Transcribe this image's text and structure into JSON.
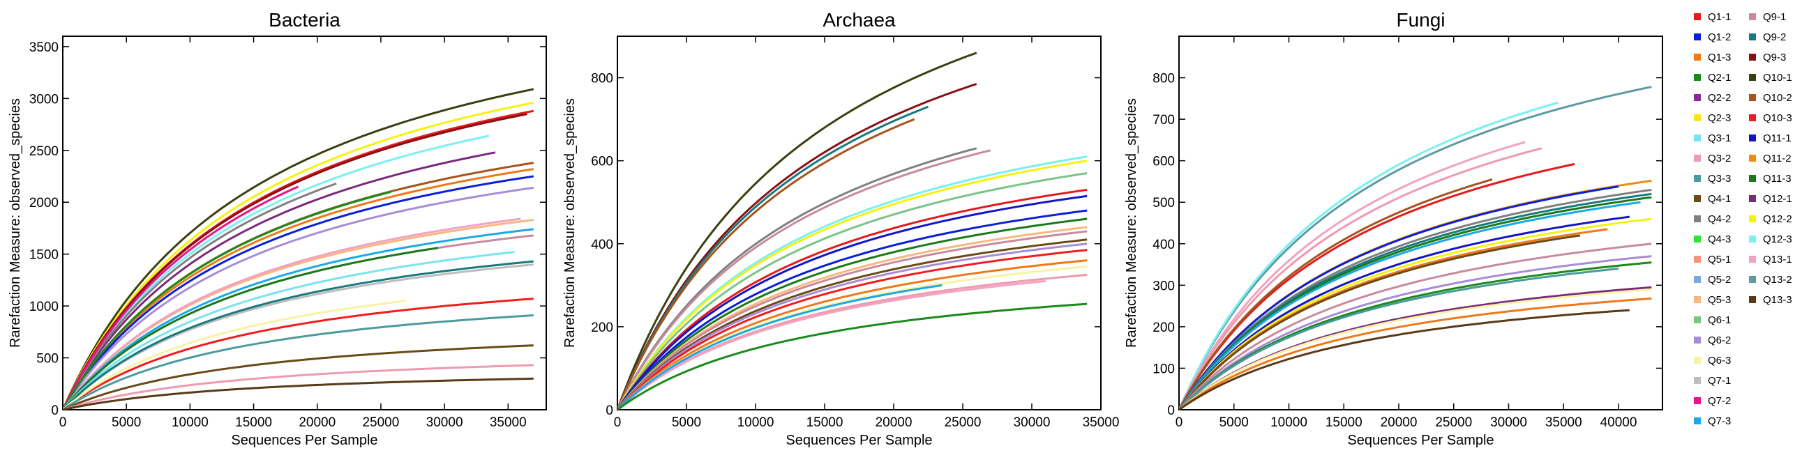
{
  "sample_names": [
    "Q1-1",
    "Q1-2",
    "Q1-3",
    "Q2-1",
    "Q2-2",
    "Q2-3",
    "Q3-1",
    "Q3-2",
    "Q3-3",
    "Q4-1",
    "Q4-2",
    "Q4-3",
    "Q5-1",
    "Q5-2",
    "Q5-3",
    "Q6-1",
    "Q6-2",
    "Q6-3",
    "Q7-1",
    "Q7-2",
    "Q7-3",
    "Q9-1",
    "Q9-2",
    "Q9-3",
    "Q10-1",
    "Q10-2",
    "Q10-3",
    "Q11-1",
    "Q11-2",
    "Q11-3",
    "Q12-1",
    "Q12-2",
    "Q12-3",
    "Q13-1",
    "Q13-2",
    "Q13-3"
  ],
  "colors": {
    "Q1-1": "#e41a1c",
    "Q1-2": "#0a1fd6",
    "Q1-3": "#f07818",
    "Q2-1": "#1a8a1a",
    "Q2-2": "#8a2a9a",
    "Q2-3": "#f5e61a",
    "Q3-1": "#7ae4ee",
    "Q3-2": "#ee9ab0",
    "Q3-3": "#4a9a9e",
    "Q4-1": "#6a4a16",
    "Q4-2": "#808080",
    "Q4-3": "#36e036",
    "Q5-1": "#f4937a",
    "Q5-2": "#7aaadc",
    "Q5-3": "#f7b880",
    "Q6-1": "#7ac488",
    "Q6-2": "#a78cd6",
    "Q6-3": "#f7f3a4",
    "Q7-1": "#bdbdbd",
    "Q7-2": "#e8148a",
    "Q7-3": "#1aa8e8",
    "Q9-1": "#c98a9a",
    "Q9-2": "#177a7e",
    "Q9-3": "#8a0f12",
    "Q10-1": "#3c4010",
    "Q10-2": "#a8521c",
    "Q10-3": "#f21c1c",
    "Q11-1": "#1414c8",
    "Q11-2": "#f08a12",
    "Q11-3": "#1a7a1a",
    "Q12-1": "#7a2a7e",
    "Q12-2": "#f6f20e",
    "Q12-3": "#7af0f2",
    "Q13-1": "#f2a2c2",
    "Q13-2": "#5e9aa2",
    "Q13-3": "#5a3a16"
  },
  "chart_data": [
    {
      "type": "line",
      "title": "Bacteria",
      "xlabel": "Sequences Per Sample",
      "ylabel": "Rarefaction Measure: observed_species",
      "xlim": [
        0,
        38000
      ],
      "ylim": [
        0,
        3600
      ],
      "xticks": [
        0,
        5000,
        10000,
        15000,
        20000,
        25000,
        30000,
        35000
      ],
      "yticks": [
        0,
        500,
        1000,
        1500,
        2000,
        2500,
        3000,
        3500
      ],
      "grid": false,
      "series": [
        {
          "name": "Q10-1",
          "xmax": 37000,
          "y": 3090
        },
        {
          "name": "Q12-2",
          "xmax": 37000,
          "y": 2960
        },
        {
          "name": "Q1-1",
          "xmax": 37000,
          "y": 2880
        },
        {
          "name": "Q9-3",
          "xmax": 36500,
          "y": 2850
        },
        {
          "name": "Q12-3",
          "xmax": 33500,
          "y": 2640
        },
        {
          "name": "Q12-1",
          "xmax": 34000,
          "y": 2480
        },
        {
          "name": "Q10-2",
          "xmax": 37000,
          "y": 2380
        },
        {
          "name": "Q1-3",
          "xmax": 37000,
          "y": 2320
        },
        {
          "name": "Q1-2",
          "xmax": 37000,
          "y": 2250
        },
        {
          "name": "Q6-2",
          "xmax": 37000,
          "y": 2140
        },
        {
          "name": "Q4-2",
          "xmax": 21500,
          "y": 2180
        },
        {
          "name": "Q7-2",
          "xmax": 18500,
          "y": 2150
        },
        {
          "name": "Q2-1",
          "xmax": 25800,
          "y": 2100
        },
        {
          "name": "Q5-3",
          "xmax": 37000,
          "y": 1830
        },
        {
          "name": "Q13-1",
          "xmax": 36000,
          "y": 1840
        },
        {
          "name": "Q7-3",
          "xmax": 37000,
          "y": 1740
        },
        {
          "name": "Q9-1",
          "xmax": 37000,
          "y": 1680
        },
        {
          "name": "Q11-3",
          "xmax": 29500,
          "y": 1560
        },
        {
          "name": "Q3-1",
          "xmax": 35500,
          "y": 1520
        },
        {
          "name": "Q7-1",
          "xmax": 37000,
          "y": 1400
        },
        {
          "name": "Q9-2",
          "xmax": 37000,
          "y": 1430
        },
        {
          "name": "Q10-3",
          "xmax": 37000,
          "y": 1070
        },
        {
          "name": "Q6-3",
          "xmax": 27000,
          "y": 1050
        },
        {
          "name": "Q3-3",
          "xmax": 37000,
          "y": 910
        },
        {
          "name": "Q4-1",
          "xmax": 37000,
          "y": 620
        },
        {
          "name": "Q3-2",
          "xmax": 37000,
          "y": 430
        },
        {
          "name": "Q13-3",
          "xmax": 37000,
          "y": 300
        }
      ]
    },
    {
      "type": "line",
      "title": "Archaea",
      "xlabel": "Sequences Per Sample",
      "ylabel": "Rarefaction Measure: observed_species",
      "xlim": [
        0,
        35000
      ],
      "ylim": [
        0,
        900
      ],
      "xticks": [
        0,
        5000,
        10000,
        15000,
        20000,
        25000,
        30000,
        35000
      ],
      "yticks": [
        0,
        200,
        400,
        600,
        800
      ],
      "grid": false,
      "series": [
        {
          "name": "Q10-1",
          "xmax": 26000,
          "y": 860
        },
        {
          "name": "Q9-3",
          "xmax": 26000,
          "y": 785
        },
        {
          "name": "Q9-2",
          "xmax": 22500,
          "y": 730
        },
        {
          "name": "Q10-2",
          "xmax": 21500,
          "y": 700
        },
        {
          "name": "Q4-2",
          "xmax": 26000,
          "y": 630
        },
        {
          "name": "Q9-1",
          "xmax": 27000,
          "y": 625
        },
        {
          "name": "Q12-3",
          "xmax": 34000,
          "y": 610
        },
        {
          "name": "Q12-2",
          "xmax": 34000,
          "y": 600
        },
        {
          "name": "Q6-1",
          "xmax": 34000,
          "y": 570
        },
        {
          "name": "Q1-1",
          "xmax": 34000,
          "y": 530
        },
        {
          "name": "Q11-1",
          "xmax": 34000,
          "y": 515
        },
        {
          "name": "Q1-2",
          "xmax": 34000,
          "y": 480
        },
        {
          "name": "Q11-3",
          "xmax": 34000,
          "y": 460
        },
        {
          "name": "Q5-3",
          "xmax": 34000,
          "y": 440
        },
        {
          "name": "Q9-1",
          "xmax": 34000,
          "y": 430
        },
        {
          "name": "Q4-1",
          "xmax": 34000,
          "y": 410
        },
        {
          "name": "Q6-2",
          "xmax": 34000,
          "y": 400
        },
        {
          "name": "Q10-3",
          "xmax": 34000,
          "y": 385
        },
        {
          "name": "Q1-3",
          "xmax": 34000,
          "y": 360
        },
        {
          "name": "Q6-3",
          "xmax": 34000,
          "y": 345
        },
        {
          "name": "Q3-2",
          "xmax": 34000,
          "y": 325
        },
        {
          "name": "Q13-1",
          "xmax": 31000,
          "y": 310
        },
        {
          "name": "Q7-3",
          "xmax": 23500,
          "y": 300
        },
        {
          "name": "Q2-1",
          "xmax": 34000,
          "y": 255
        }
      ]
    },
    {
      "type": "line",
      "title": "Fungi",
      "xlabel": "Sequences Per Sample",
      "ylabel": "Rarefaction Measure: observed_species",
      "xlim": [
        0,
        44000
      ],
      "ylim": [
        0,
        900
      ],
      "xticks": [
        0,
        5000,
        10000,
        15000,
        20000,
        25000,
        30000,
        35000,
        40000
      ],
      "yticks": [
        0,
        100,
        200,
        300,
        400,
        500,
        600,
        700,
        800
      ],
      "grid": false,
      "series": [
        {
          "name": "Q13-2",
          "xmax": 43000,
          "y": 778
        },
        {
          "name": "Q12-3",
          "xmax": 34500,
          "y": 740
        },
        {
          "name": "Q13-1",
          "xmax": 31500,
          "y": 645
        },
        {
          "name": "Q3-2",
          "xmax": 33000,
          "y": 630
        },
        {
          "name": "Q1-1",
          "xmax": 36000,
          "y": 592
        },
        {
          "name": "Q10-2",
          "xmax": 28500,
          "y": 555
        },
        {
          "name": "Q11-2",
          "xmax": 43000,
          "y": 552
        },
        {
          "name": "Q1-2",
          "xmax": 40000,
          "y": 538
        },
        {
          "name": "Q4-2",
          "xmax": 43000,
          "y": 530
        },
        {
          "name": "Q9-2",
          "xmax": 43000,
          "y": 520
        },
        {
          "name": "Q11-3",
          "xmax": 43000,
          "y": 512
        },
        {
          "name": "Q7-3",
          "xmax": 42000,
          "y": 500
        },
        {
          "name": "Q11-1",
          "xmax": 41000,
          "y": 465
        },
        {
          "name": "Q12-2",
          "xmax": 43000,
          "y": 460
        },
        {
          "name": "Q1-3",
          "xmax": 39000,
          "y": 435
        },
        {
          "name": "Q4-1",
          "xmax": 36500,
          "y": 420
        },
        {
          "name": "Q9-1",
          "xmax": 43000,
          "y": 400
        },
        {
          "name": "Q6-2",
          "xmax": 43000,
          "y": 370
        },
        {
          "name": "Q2-1",
          "xmax": 43000,
          "y": 355
        },
        {
          "name": "Q3-3",
          "xmax": 40000,
          "y": 340
        },
        {
          "name": "Q12-1",
          "xmax": 43000,
          "y": 295
        },
        {
          "name": "Q6-3",
          "xmax": 43000,
          "y": 290
        },
        {
          "name": "Q1-3",
          "xmax": 43000,
          "y": 268
        },
        {
          "name": "Q13-3",
          "xmax": 41000,
          "y": 240
        }
      ]
    }
  ],
  "legend": {
    "col1": [
      "Q1-1",
      "Q1-2",
      "Q1-3",
      "Q2-1",
      "Q2-2",
      "Q2-3",
      "Q3-1",
      "Q3-2",
      "Q3-3",
      "Q4-1",
      "Q4-2",
      "Q4-3",
      "Q5-1",
      "Q5-2",
      "Q5-3",
      "Q6-1",
      "Q6-2",
      "Q6-3",
      "Q7-1",
      "Q7-2",
      "Q7-3"
    ],
    "col2": [
      "Q9-1",
      "Q9-2",
      "Q9-3",
      "Q10-1",
      "Q10-2",
      "Q10-3",
      "Q11-1",
      "Q11-2",
      "Q11-3",
      "Q12-1",
      "Q12-2",
      "Q12-3",
      "Q13-1",
      "Q13-2",
      "Q13-3"
    ]
  }
}
